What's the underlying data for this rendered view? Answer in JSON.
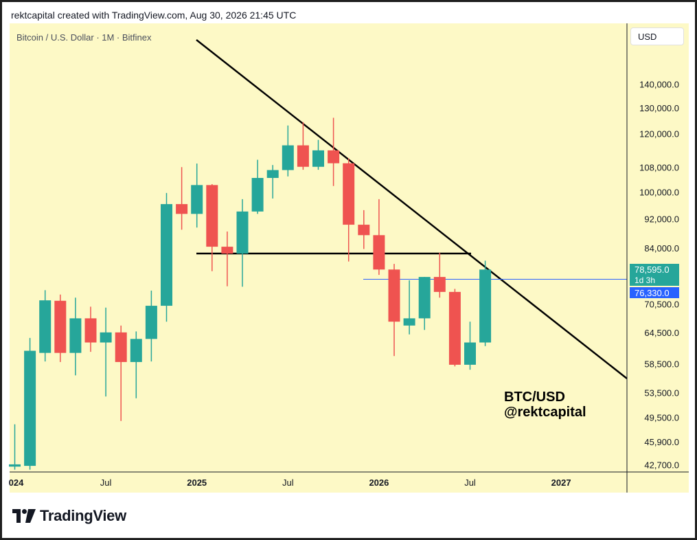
{
  "header": {
    "text": "rektcapital created with TradingView.com, Aug 30, 2026 21:45 UTC"
  },
  "chart_title": "Bitcoin / U.S. Dollar · 1M · Bitfinex",
  "currency_button": "USD",
  "footer": {
    "brand": "TradingView"
  },
  "colors": {
    "up": "#26a69a",
    "down": "#ef5350",
    "background": "#fdf9c6",
    "current_price": "#2962ff"
  },
  "chart_data": {
    "type": "candlestick",
    "scale": "log",
    "x_ticks": [
      {
        "label": "024",
        "index": 0,
        "bold": true
      },
      {
        "label": "Jul",
        "index": 6,
        "bold": false
      },
      {
        "label": "2025",
        "index": 12,
        "bold": true
      },
      {
        "label": "Jul",
        "index": 18,
        "bold": false
      },
      {
        "label": "2026",
        "index": 24,
        "bold": true
      },
      {
        "label": "Jul",
        "index": 30,
        "bold": false
      },
      {
        "label": "2027",
        "index": 36,
        "bold": true
      }
    ],
    "y_ticks": [
      "140,000.0",
      "130,000.0",
      "120,000.0",
      "108,000.0",
      "100,000.0",
      "92,000.0",
      "84,000.0",
      "70,500.0",
      "64,500.0",
      "58,500.0",
      "53,500.0",
      "49,500.0",
      "45,900.0",
      "42,700.0"
    ],
    "candles": [
      {
        "o": 42500,
        "h": 48500,
        "l": 42100,
        "c": 42800
      },
      {
        "o": 42600,
        "h": 63500,
        "l": 42100,
        "c": 61000
      },
      {
        "o": 60600,
        "h": 73700,
        "l": 59000,
        "c": 71400
      },
      {
        "o": 71300,
        "h": 72700,
        "l": 58900,
        "c": 60600
      },
      {
        "o": 60600,
        "h": 72000,
        "l": 56500,
        "c": 67500
      },
      {
        "o": 67500,
        "h": 70000,
        "l": 60800,
        "c": 62600
      },
      {
        "o": 62600,
        "h": 69800,
        "l": 52900,
        "c": 64600
      },
      {
        "o": 64600,
        "h": 66000,
        "l": 49000,
        "c": 58900
      },
      {
        "o": 58900,
        "h": 64800,
        "l": 52600,
        "c": 63300
      },
      {
        "o": 63300,
        "h": 73600,
        "l": 59000,
        "c": 70200
      },
      {
        "o": 70200,
        "h": 99800,
        "l": 66800,
        "c": 96400
      },
      {
        "o": 96400,
        "h": 108200,
        "l": 89000,
        "c": 93500
      },
      {
        "o": 93500,
        "h": 109400,
        "l": 89600,
        "c": 102300
      },
      {
        "o": 102300,
        "h": 102600,
        "l": 78200,
        "c": 84400
      },
      {
        "o": 84400,
        "h": 88500,
        "l": 74600,
        "c": 82600
      },
      {
        "o": 82600,
        "h": 97900,
        "l": 74500,
        "c": 94200
      },
      {
        "o": 94200,
        "h": 110700,
        "l": 93500,
        "c": 104600
      },
      {
        "o": 104600,
        "h": 108900,
        "l": 98100,
        "c": 107200
      },
      {
        "o": 107200,
        "h": 123200,
        "l": 105100,
        "c": 115800
      },
      {
        "o": 115800,
        "h": 124500,
        "l": 107300,
        "c": 108300
      },
      {
        "o": 108300,
        "h": 117800,
        "l": 107300,
        "c": 114000
      },
      {
        "o": 114000,
        "h": 126200,
        "l": 102000,
        "c": 109500
      },
      {
        "o": 109500,
        "h": 111200,
        "l": 80600,
        "c": 90400
      },
      {
        "o": 90400,
        "h": 94600,
        "l": 83800,
        "c": 87500
      },
      {
        "o": 87500,
        "h": 97900,
        "l": 77300,
        "c": 78600
      },
      {
        "o": 78600,
        "h": 80000,
        "l": 60000,
        "c": 66800
      },
      {
        "o": 66000,
        "h": 76000,
        "l": 64200,
        "c": 67500
      },
      {
        "o": 67500,
        "h": 76800,
        "l": 65100,
        "c": 76800
      },
      {
        "o": 76800,
        "h": 82800,
        "l": 72000,
        "c": 73300
      },
      {
        "o": 73300,
        "h": 74000,
        "l": 58100,
        "c": 58400
      },
      {
        "o": 58400,
        "h": 66800,
        "l": 57500,
        "c": 62600
      },
      {
        "o": 62600,
        "h": 80800,
        "l": 61900,
        "c": 78595
      }
    ],
    "current_price": {
      "value": 78595,
      "label": "78,595.0",
      "countdown": "1d 3h"
    },
    "horizontal_line": {
      "value": 76330,
      "label": "76,330.0"
    },
    "annotations": {
      "line1": "BTC/USD",
      "line2": "@rektcapital"
    }
  }
}
